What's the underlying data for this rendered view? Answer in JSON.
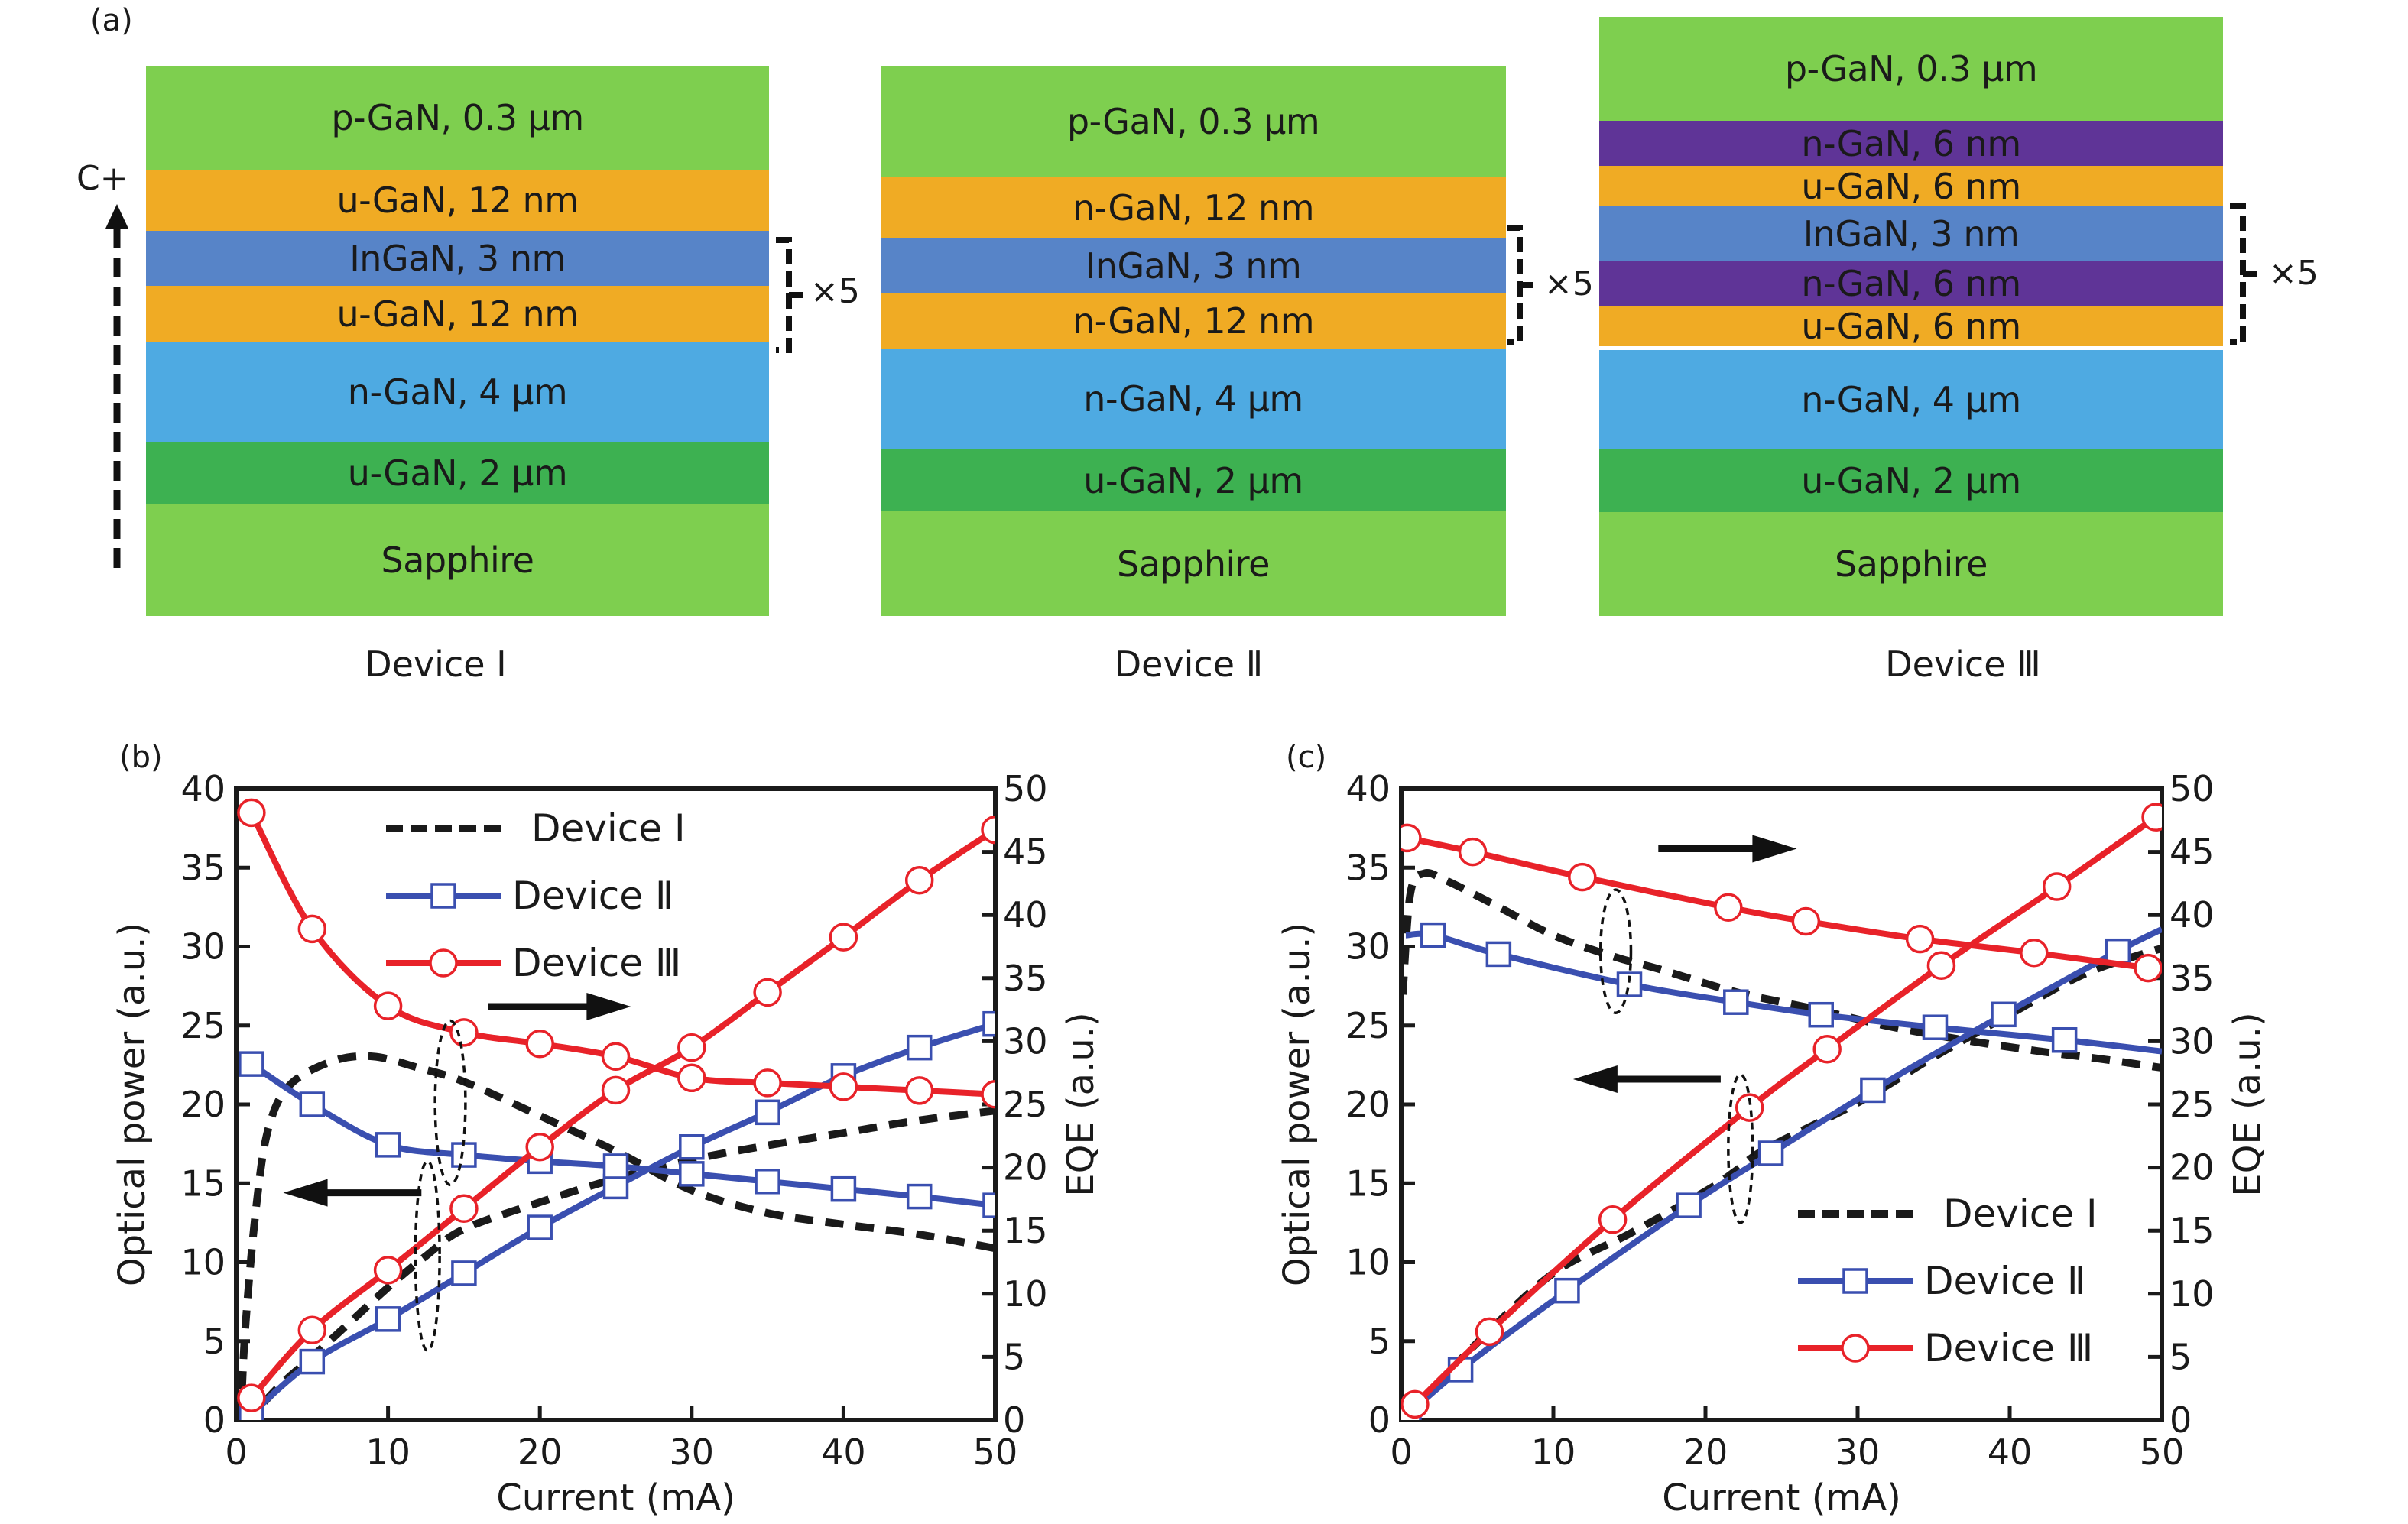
{
  "figure": {
    "panel_a_label": "(a)",
    "panel_b_label": "(b)",
    "panel_c_label": "(c)",
    "current_marker": "C+",
    "repeat_label": "×5",
    "colors": {
      "p_gan": "#7ecf4f",
      "undoped_gan_thin": "#f0ab24",
      "ingan": "#5784c8",
      "n_gan_thin": "#5f3497",
      "n_gan_thick": "#4eaae2",
      "u_gan_thick": "#3db151",
      "sapphire": "#7ecf4f",
      "device1": "#1a1a1a",
      "device2": "#3a4fb0",
      "device3": "#e82229"
    }
  },
  "structures": [
    {
      "caption": "Device Ⅰ",
      "layers": [
        {
          "label": "p-GaN, 0.3 μm",
          "color": "#7ecf4f"
        },
        {
          "label": "u-GaN, 12 nm",
          "color": "#f0ab24"
        },
        {
          "label": "InGaN, 3 nm",
          "color": "#5784c8"
        },
        {
          "label": "u-GaN, 12 nm",
          "color": "#f0ab24"
        },
        {
          "label": "n-GaN, 4 μm",
          "color": "#4eaae2"
        },
        {
          "label": "u-GaN, 2 μm",
          "color": "#3db151"
        },
        {
          "label": "Sapphire",
          "color": "#7ecf4f"
        }
      ],
      "repeat": "×5"
    },
    {
      "caption": "Device Ⅱ",
      "layers": [
        {
          "label": "p-GaN, 0.3 μm",
          "color": "#7ecf4f"
        },
        {
          "label": "n-GaN, 12 nm",
          "color": "#f0ab24"
        },
        {
          "label": "InGaN, 3 nm",
          "color": "#5784c8"
        },
        {
          "label": "n-GaN, 12 nm",
          "color": "#f0ab24"
        },
        {
          "label": "n-GaN, 4 μm",
          "color": "#4eaae2"
        },
        {
          "label": "u-GaN, 2 μm",
          "color": "#3db151"
        },
        {
          "label": "Sapphire",
          "color": "#7ecf4f"
        }
      ],
      "repeat": "×5"
    },
    {
      "caption": "Device Ⅲ",
      "layers": [
        {
          "label": "p-GaN, 0.3 μm",
          "color": "#7ecf4f"
        },
        {
          "label": "n-GaN, 6 nm",
          "color": "#5f3497"
        },
        {
          "label": "u-GaN, 6 nm",
          "color": "#f0ab24"
        },
        {
          "label": "InGaN, 3 nm",
          "color": "#5784c8"
        },
        {
          "label": "n-GaN, 6 nm",
          "color": "#5f3497"
        },
        {
          "label": "u-GaN, 6 nm",
          "color": "#f0ab24"
        },
        {
          "label": "n-GaN, 4 μm",
          "color": "#4eaae2"
        },
        {
          "label": "u-GaN, 2 μm",
          "color": "#3db151"
        },
        {
          "label": "Sapphire",
          "color": "#7ecf4f"
        }
      ],
      "repeat": "×5"
    }
  ],
  "chart_data": [
    {
      "id": "b",
      "type": "line",
      "title": "",
      "xlabel": "Current (mA)",
      "ylabel": "Optical power (a.u.)",
      "y2label": "EQE (a.u.)",
      "xlim": [
        0,
        50
      ],
      "ylim": [
        0,
        40
      ],
      "y2lim": [
        0,
        50
      ],
      "xticks": [
        0,
        10,
        20,
        30,
        40,
        50
      ],
      "yticks": [
        0,
        5,
        10,
        15,
        20,
        25,
        30,
        35,
        40
      ],
      "y2ticks": [
        0,
        5,
        10,
        15,
        20,
        25,
        30,
        35,
        40,
        45,
        50
      ],
      "grid": false,
      "legend_position": "top-left",
      "legend": [
        {
          "name": "Device Ⅰ",
          "style": "dashed",
          "marker": "none",
          "color": "#1a1a1a"
        },
        {
          "name": "Device Ⅱ",
          "style": "solid",
          "marker": "square",
          "color": "#3a4fb0"
        },
        {
          "name": "Device Ⅲ",
          "style": "solid",
          "marker": "circle",
          "color": "#e82229"
        }
      ],
      "series": [
        {
          "name": "Device Ⅰ optical power",
          "device": 1,
          "axis": "left",
          "style": "dashed",
          "marker": "none",
          "color": "#1a1a1a",
          "x": [
            0.3,
            1,
            3,
            5,
            7.5,
            10,
            12.5,
            15,
            20,
            25,
            30,
            35,
            40,
            45,
            50
          ],
          "y": [
            0,
            0.3,
            2.3,
            4.0,
            6.2,
            8.4,
            10.4,
            12.1,
            13.8,
            15.3,
            16.5,
            17.4,
            18.2,
            19.0,
            19.6
          ]
        },
        {
          "name": "Device Ⅰ EQE",
          "device": 1,
          "axis": "right",
          "style": "dashed",
          "marker": "none",
          "color": "#1a1a1a",
          "x": [
            0.3,
            0.6,
            1.3,
            2.1,
            3.5,
            6.3,
            9,
            12,
            15,
            20,
            25,
            30,
            35,
            40,
            45,
            50
          ],
          "y": [
            0,
            7.3,
            16.7,
            23.0,
            26.5,
            28.4,
            28.8,
            27.9,
            26.8,
            24.1,
            21.3,
            18.2,
            16.4,
            15.5,
            14.7,
            13.6
          ]
        },
        {
          "name": "Device Ⅱ optical power",
          "device": 2,
          "axis": "left",
          "style": "solid",
          "marker": "square",
          "color": "#3a4fb0",
          "x": [
            1,
            5,
            10,
            15,
            20,
            25,
            30,
            35,
            40,
            45,
            50
          ],
          "y": [
            0.4,
            3.7,
            6.4,
            9.3,
            12.2,
            14.8,
            17.3,
            19.5,
            21.8,
            23.6,
            25.1
          ]
        },
        {
          "name": "Device Ⅱ EQE",
          "device": 2,
          "axis": "right",
          "style": "solid",
          "marker": "square",
          "color": "#3a4fb0",
          "x": [
            1,
            5,
            10,
            15,
            20,
            25,
            30,
            35,
            40,
            45,
            50
          ],
          "y": [
            28.2,
            25.0,
            21.8,
            21.0,
            20.5,
            20.1,
            19.5,
            18.9,
            18.3,
            17.7,
            17.0
          ]
        },
        {
          "name": "Device Ⅲ optical power",
          "device": 3,
          "axis": "left",
          "style": "solid",
          "marker": "circle",
          "color": "#e82229",
          "x": [
            1,
            5,
            10,
            15,
            20,
            25,
            30,
            35,
            40,
            45,
            50
          ],
          "y": [
            1.4,
            5.7,
            9.5,
            13.4,
            17.3,
            20.9,
            23.6,
            27.1,
            30.6,
            34.2,
            37.4
          ]
        },
        {
          "name": "Device Ⅲ EQE",
          "device": 3,
          "axis": "right",
          "style": "solid",
          "marker": "circle",
          "color": "#e82229",
          "x": [
            1,
            5,
            10,
            15,
            20,
            25,
            30,
            35,
            40,
            45,
            50
          ],
          "y": [
            48.1,
            38.9,
            32.8,
            30.7,
            29.8,
            28.8,
            27.1,
            26.7,
            26.4,
            26.1,
            25.8
          ]
        }
      ],
      "annotations": {
        "arrow_right": {
          "from": [
            16.6,
            26.2
          ],
          "to": [
            26.0,
            26.2
          ],
          "meaning": "EQE curves use right axis"
        },
        "arrow_left": {
          "from": [
            12.2,
            14.4
          ],
          "to": [
            3.1,
            14.4
          ],
          "meaning": "Optical power curves use left axis"
        },
        "ellipses": [
          {
            "center": [
              14.1,
              20.1
            ],
            "half_width": 1.0,
            "half_height": 5.2
          },
          {
            "center": [
              12.6,
              10.4
            ],
            "half_width": 0.8,
            "half_height": 6.0
          }
        ]
      }
    },
    {
      "id": "c",
      "type": "line",
      "title": "",
      "xlabel": "Current (mA)",
      "ylabel": "Optical power (a.u.)",
      "y2label": "EQE (a.u.)",
      "xlim": [
        0,
        50
      ],
      "ylim": [
        0,
        40
      ],
      "y2lim": [
        0,
        50
      ],
      "xticks": [
        0,
        10,
        20,
        30,
        40,
        50
      ],
      "yticks": [
        0,
        5,
        10,
        15,
        20,
        25,
        30,
        35,
        40
      ],
      "y2ticks": [
        0,
        5,
        10,
        15,
        20,
        25,
        30,
        35,
        40,
        45,
        50
      ],
      "grid": false,
      "legend_position": "bottom-right",
      "legend": [
        {
          "name": "Device Ⅰ",
          "style": "dashed",
          "marker": "none",
          "color": "#1a1a1a"
        },
        {
          "name": "Device Ⅱ",
          "style": "solid",
          "marker": "square",
          "color": "#3a4fb0"
        },
        {
          "name": "Device Ⅲ",
          "style": "solid",
          "marker": "circle",
          "color": "#e82229"
        }
      ],
      "series": [
        {
          "name": "Device Ⅰ optical power",
          "device": 1,
          "axis": "left",
          "style": "dashed",
          "marker": "none",
          "color": "#1a1a1a",
          "x": [
            0.5,
            5,
            10,
            15,
            20,
            22,
            24,
            30,
            35,
            40,
            45,
            50
          ],
          "y": [
            0.4,
            4.9,
            9.3,
            11.8,
            14.5,
            15.8,
            17.2,
            20.1,
            23.0,
            25.7,
            28.3,
            29.9
          ]
        },
        {
          "name": "Device Ⅰ EQE",
          "device": 1,
          "axis": "right",
          "style": "dashed",
          "marker": "none",
          "color": "#1a1a1a",
          "x": [
            0.1,
            0.6,
            1.5,
            3,
            6,
            10,
            14,
            17,
            22,
            27,
            32,
            37,
            42,
            46,
            50
          ],
          "y": [
            33.7,
            41.7,
            43.3,
            42.7,
            40.9,
            38.4,
            36.7,
            35.7,
            33.9,
            32.6,
            31.2,
            30.1,
            29.2,
            28.6,
            27.9
          ]
        },
        {
          "name": "Device Ⅱ optical power",
          "device": 2,
          "axis": "left",
          "style": "solid",
          "marker": "square",
          "color": "#3a4fb0",
          "x": [
            0.5,
            3.9,
            10.9,
            18.9,
            24.3,
            31.0,
            39.6,
            47.1,
            50
          ],
          "y": [
            0.4,
            3.2,
            8.2,
            13.6,
            16.9,
            20.9,
            25.7,
            29.7,
            31.1
          ],
          "marker_x": [
            0.5,
            3.9,
            10.9,
            18.9,
            24.3,
            31.0,
            39.6,
            47.1
          ]
        },
        {
          "name": "Device Ⅱ EQE",
          "device": 2,
          "axis": "right",
          "style": "solid",
          "marker": "square",
          "color": "#3a4fb0",
          "x": [
            0.3,
            2.1,
            6.4,
            15.0,
            22.0,
            27.6,
            35.1,
            43.6,
            50
          ],
          "y": [
            38.4,
            38.4,
            36.9,
            34.5,
            33.1,
            32.1,
            31.1,
            30.1,
            29.2
          ],
          "marker_x": [
            2.1,
            6.4,
            15.0,
            22.0,
            27.6,
            35.1,
            43.6
          ]
        },
        {
          "name": "Device Ⅲ optical power",
          "device": 3,
          "axis": "left",
          "style": "solid",
          "marker": "circle",
          "color": "#e82229",
          "x": [
            0.9,
            5.8,
            13.9,
            22.9,
            28.0,
            35.5,
            43.1,
            49.6
          ],
          "y": [
            1.0,
            5.6,
            12.7,
            19.8,
            23.5,
            28.8,
            33.8,
            38.2
          ]
        },
        {
          "name": "Device Ⅲ EQE",
          "device": 3,
          "axis": "right",
          "style": "solid",
          "marker": "circle",
          "color": "#e82229",
          "x": [
            0.4,
            4.7,
            11.9,
            21.5,
            26.6,
            34.1,
            41.6,
            49.1
          ],
          "y": [
            46.1,
            45.0,
            43.0,
            40.6,
            39.5,
            38.1,
            37.0,
            35.8
          ]
        }
      ],
      "annotations": {
        "arrow_right": {
          "from": [
            16.9,
            36.2
          ],
          "to": [
            26.0,
            36.2
          ],
          "meaning": "EQE curves use right axis"
        },
        "arrow_left": {
          "from": [
            21.0,
            21.6
          ],
          "to": [
            11.3,
            21.6
          ],
          "meaning": "Optical power curves use left axis"
        },
        "ellipses": [
          {
            "center": [
              14.1,
              29.7
            ],
            "half_width": 1.0,
            "half_height": 3.9
          },
          {
            "center": [
              22.3,
              17.2
            ],
            "half_width": 0.8,
            "half_height": 4.7
          }
        ]
      }
    }
  ]
}
